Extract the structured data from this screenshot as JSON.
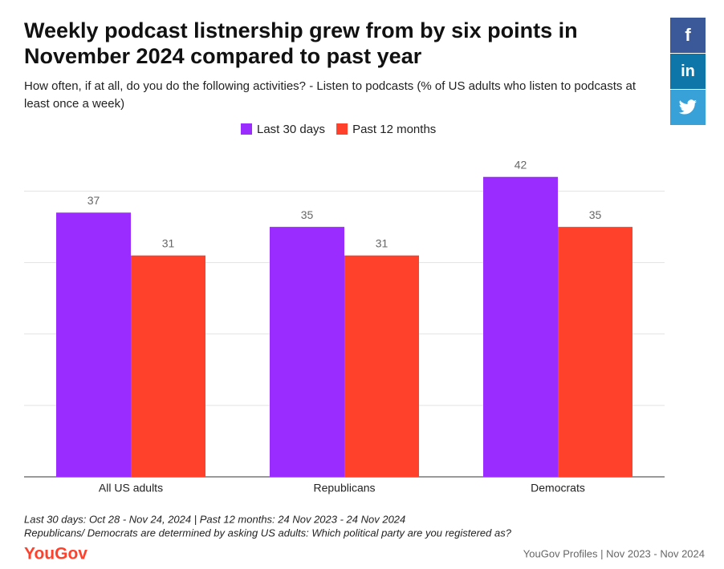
{
  "chart_data": {
    "type": "bar",
    "title": "Weekly podcast listnership grew from by six points in November 2024 compared to past year",
    "subtitle": "How often, if at all, do you do the following activities? - Listen to podcasts (% of US adults who listen to podcasts at least once a week)",
    "categories": [
      "All US adults",
      "Republicans",
      "Democrats"
    ],
    "series": [
      {
        "name": "Last 30 days",
        "color": "#9b2cff",
        "values": [
          37,
          35,
          42
        ]
      },
      {
        "name": "Past 12 months",
        "color": "#ff412c",
        "values": [
          31,
          31,
          35
        ]
      }
    ],
    "ylim": [
      0,
      45
    ],
    "yticks": [
      0,
      10,
      20,
      30,
      40
    ],
    "grid": true,
    "notes": [
      "Last 30 days: Oct 28 - Nov 24, 2024 | Past 12 months: 24 Nov 2023 - 24 Nov 2024",
      "Republicans/ Democrats are determined by asking US adults: Which political party are you registered as?"
    ],
    "logo": "YouGov",
    "source": "YouGov Profiles | Nov 2023 - Nov 2024"
  },
  "share_buttons": {
    "facebook": "f",
    "linkedin": "in"
  }
}
